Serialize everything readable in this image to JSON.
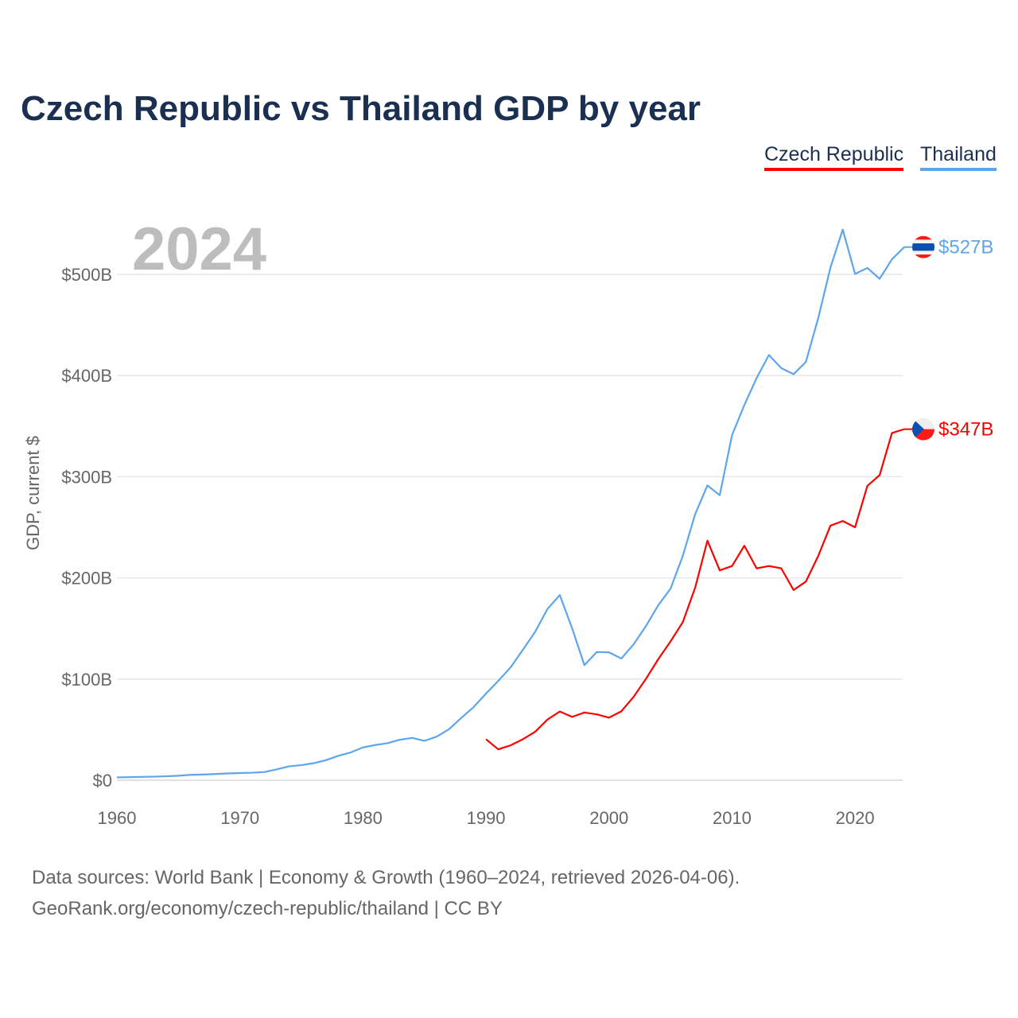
{
  "chart_data": {
    "type": "line",
    "title": "Czech Republic vs Thailand GDP by year",
    "xlabel": "",
    "ylabel": "GDP, current $",
    "xlim": [
      1960,
      2024
    ],
    "ylim": [
      0,
      550
    ],
    "x_ticks": [
      1960,
      1970,
      1980,
      1990,
      2000,
      2010,
      2020
    ],
    "x_tick_labels": [
      "1960",
      "1970",
      "1980",
      "1990",
      "2000",
      "2010",
      "2020"
    ],
    "y_ticks": [
      0,
      100,
      200,
      300,
      400,
      500
    ],
    "y_tick_labels": [
      "$0",
      "$100B",
      "$200B",
      "$300B",
      "$400B",
      "$500B"
    ],
    "grid": true,
    "legend_position": "top-right",
    "year_watermark": "2024",
    "series": [
      {
        "name": "Czech Republic",
        "color": "#ff0000",
        "flag": "czech-flag",
        "end_label": "$347B",
        "start_year": 1990,
        "values": [
          40.5,
          30.5,
          34.5,
          40.5,
          47.9,
          60.0,
          67.9,
          62.6,
          66.9,
          65.1,
          61.8,
          68.1,
          82.4,
          100.1,
          119.6,
          137.2,
          156.3,
          190.2,
          236.8,
          207.4,
          211.7,
          231.8,
          209.4,
          211.7,
          209.4,
          188.0,
          196.3,
          221.5,
          251.6,
          256.2,
          250.0,
          290.9,
          301.6,
          343.2,
          347.0
        ]
      },
      {
        "name": "Thailand",
        "color": "#5ea5ec",
        "flag": "thailand-flag",
        "end_label": "$527B",
        "start_year": 1960,
        "values": [
          2.8,
          3.0,
          3.3,
          3.5,
          3.9,
          4.4,
          5.3,
          5.6,
          6.1,
          6.7,
          7.1,
          7.4,
          8.1,
          10.8,
          13.7,
          14.9,
          16.8,
          19.8,
          24.1,
          27.4,
          32.4,
          34.8,
          36.6,
          40.0,
          41.8,
          38.9,
          43.1,
          50.5,
          61.7,
          72.3,
          85.6,
          98.2,
          111.5,
          128.9,
          146.7,
          169.3,
          183.0,
          150.2,
          113.7,
          126.7,
          126.4,
          120.3,
          134.3,
          152.3,
          172.9,
          189.3,
          221.8,
          262.9,
          291.4,
          281.7,
          341.1,
          370.8,
          397.6,
          420.3,
          407.3,
          401.3,
          413.4,
          456.4,
          506.8,
          544.3,
          500.5,
          506.3,
          495.6,
          515.0,
          527.0
        ]
      }
    ]
  },
  "source": {
    "line1": "Data sources: World Bank | Economy & Growth (1960–2024, retrieved 2026-04-06).",
    "line2": "GeoRank.org/economy/czech-republic/thailand | CC BY"
  }
}
